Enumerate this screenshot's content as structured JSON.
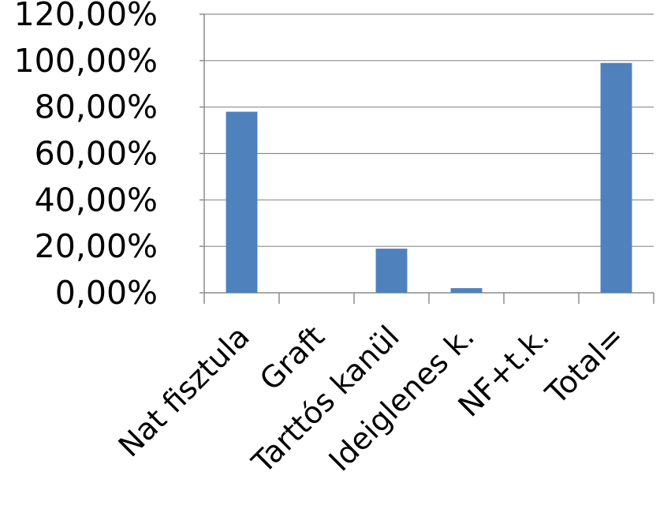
{
  "chart_data": {
    "type": "bar",
    "title": "",
    "xlabel": "",
    "ylabel": "",
    "categories": [
      "Nat fisztula",
      "Graft",
      "Tarttós kanül",
      "Ideiglenes k.",
      "NF+t.k.",
      "Total="
    ],
    "values": [
      78.0,
      0.0,
      19.0,
      2.0,
      0.0,
      99.0
    ],
    "ylim": [
      0,
      120
    ],
    "yticks": [
      0,
      20,
      40,
      60,
      80,
      100,
      120
    ],
    "ytick_labels": [
      "0,00%",
      "20,00%",
      "40,00%",
      "60,00%",
      "80,00%",
      "100,00%",
      "120,00%"
    ],
    "grid": true,
    "legend": "none",
    "bar_color": "#4f81bd"
  }
}
